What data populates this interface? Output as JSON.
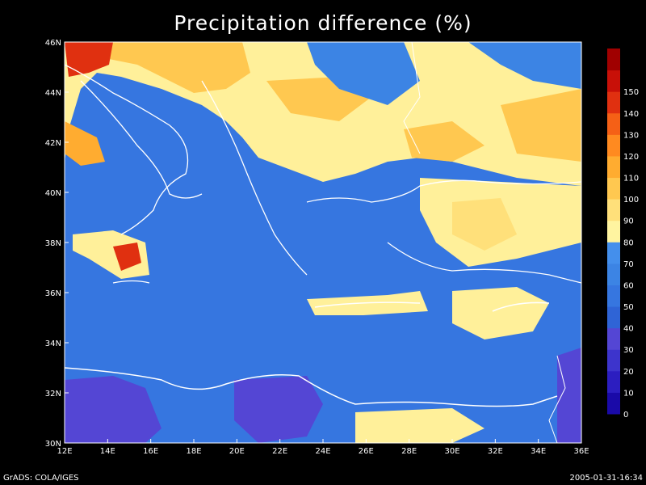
{
  "title": "Precipitation difference (%)",
  "footer": {
    "left": "GrADS: COLA/IGES",
    "right": "2005-01-31-16:34"
  },
  "map": {
    "lon_range": [
      12,
      36
    ],
    "lat_range": [
      30,
      46
    ],
    "lon_ticks": [
      "12E",
      "14E",
      "16E",
      "18E",
      "20E",
      "22E",
      "24E",
      "26E",
      "28E",
      "30E",
      "32E",
      "34E",
      "36E"
    ],
    "lat_ticks": [
      "30N",
      "32N",
      "34N",
      "36N",
      "38N",
      "40N",
      "42N",
      "44N",
      "46N"
    ]
  },
  "colorbar": {
    "levels": [
      "0",
      "10",
      "20",
      "30",
      "40",
      "50",
      "60",
      "70",
      "80",
      "90",
      "100",
      "110",
      "120",
      "130",
      "140",
      "150"
    ],
    "colors": [
      "#1a0aa8",
      "#2c1ec0",
      "#3d34cc",
      "#5446d4",
      "#2f64d6",
      "#3676e0",
      "#3c84e4",
      "#448fec",
      "#fff4a0",
      "#ffe07a",
      "#ffc850",
      "#ffac30",
      "#ff8a20",
      "#f56016",
      "#e03010",
      "#c81008",
      "#a00000"
    ]
  }
}
